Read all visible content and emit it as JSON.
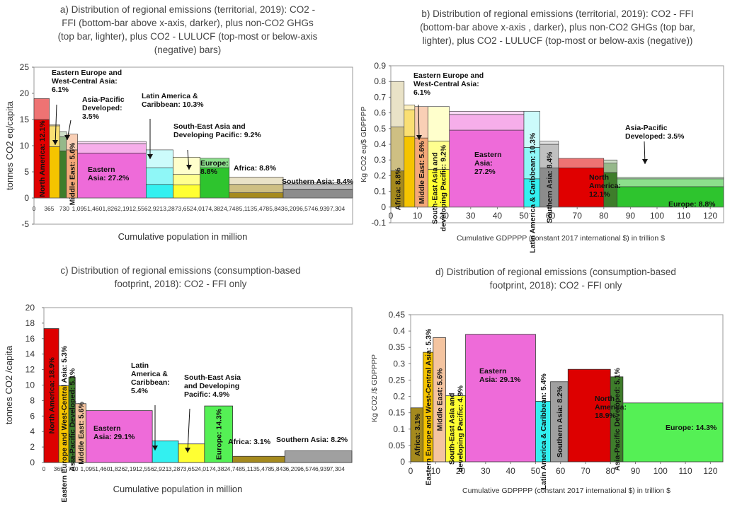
{
  "chart_data": [
    {
      "type": "bar",
      "panel": "a",
      "title": [
        "a) Distribution of regional emissions (territorial, 2019): CO2  -",
        "FFI (bottom-bar  above x-axis, darker), plus non-CO2  GHGs",
        "(top bar, lighter), plus  CO2   - LULUCF (top-most or below-axis",
        "(negative) bars)"
      ],
      "xlabel": "Cumulative population in million",
      "ylabel": "tonnes CO2 eq/capita",
      "ylim": [
        -5,
        25
      ],
      "yticks": [
        "-5",
        "0",
        "5",
        "10",
        "15",
        "20",
        "25"
      ],
      "xlim": [
        0,
        7670
      ],
      "xtick_labels": [
        "0",
        "365",
        "730",
        "1,095",
        "1,460",
        "1,826",
        "2,191",
        "2,556",
        "2,921",
        "3,287",
        "3,652",
        "4,017",
        "4,382",
        "4,748",
        "5,113",
        "5,478",
        "5,843",
        "6,209",
        "6,574",
        "6,939",
        "7,304"
      ],
      "series": [
        {
          "region": "North America",
          "label": "North America: 12.1%",
          "x0": 0,
          "x1": 370,
          "ffi": 15.0,
          "nonco2": 4.0,
          "lulucf": 0,
          "color": "#e00000"
        },
        {
          "region": "Eastern Europe and West-Central Asia",
          "label": "Eastern Europe and West-Central Asia: 6.1%",
          "x0": 370,
          "x1": 620,
          "ffi": 9.8,
          "nonco2": 4.0,
          "lulucf": 0.2,
          "color": "#f5c400"
        },
        {
          "region": "Asia-Pacific Developed",
          "label": "Asia-Pacific Developed: 3.5%",
          "x0": 620,
          "x1": 780,
          "ffi": 9.0,
          "nonco2": 2.7,
          "lulucf": 1.0,
          "color": "#3e7d2b"
        },
        {
          "region": "Middle East",
          "label": "Middle East: 5.6%",
          "x0": 780,
          "x1": 1050,
          "ffi": 9.2,
          "nonco2": 3.0,
          "lulucf": 0,
          "color": "#f4a878"
        },
        {
          "region": "Eastern Asia",
          "label": "Eastern Asia: 27.2%",
          "x0": 1050,
          "x1": 2700,
          "ffi": 8.6,
          "nonco2": 1.8,
          "lulucf": 0.4,
          "color": "#ee6bd9"
        },
        {
          "region": "Latin America & Caribbean",
          "label": "Latin America & Caribbean: 10.3%",
          "x0": 2700,
          "x1": 3350,
          "ffi": 2.6,
          "nonco2": 3.2,
          "lulucf": 3.4,
          "color": "#33f0f0"
        },
        {
          "region": "South-East Asia and Developing Pacific",
          "label": "South-East Asia and Developing Pacific: 9.2%",
          "x0": 3350,
          "x1": 4000,
          "ffi": 2.5,
          "nonco2": 2.0,
          "lulucf": 3.3,
          "color": "#ffff33"
        },
        {
          "region": "Europe",
          "label": "Europe: 8.8%",
          "x0": 4000,
          "x1": 4700,
          "ffi": 5.8,
          "nonco2": 1.8,
          "lulucf": 0,
          "color": "#2ec42e"
        },
        {
          "region": "Africa",
          "label": "Africa: 8.8%",
          "x0": 4700,
          "x1": 6000,
          "ffi": 1.0,
          "nonco2": 1.6,
          "lulucf": 1.4,
          "color": "#a58a1e"
        },
        {
          "region": "Southern Asia",
          "label": "Southern Asia: 8.4%",
          "x0": 6000,
          "x1": 7670,
          "ffi": 1.7,
          "nonco2": 0.9,
          "lulucf": 0.3,
          "color": "#8c8c8c"
        }
      ]
    },
    {
      "type": "bar",
      "panel": "b",
      "title": [
        "b) Distribution of regional emissions (territorial, 2019): CO2  - FFI",
        "(bottom-bar  above x-axis , darker), plus non-CO2  GHGs (top bar,",
        "lighter), plus  CO2   - LULUCF (top-most or below-axis (negative))"
      ],
      "xlabel": "Cumulative GDPPPP (constant 2017 international $) in trillion $",
      "ylabel": "Kg CO2 eq/$ GDPPPP",
      "ylim": [
        -0.1,
        0.9
      ],
      "yticks": [
        "-0.1",
        "0",
        "0.1",
        "0.2",
        "0.3",
        "0.4",
        "0.5",
        "0.6",
        "0.7",
        "0.8",
        "0.9"
      ],
      "xlim": [
        0,
        125
      ],
      "xtick_labels": [
        "0",
        "10",
        "20",
        "30",
        "40",
        "50",
        "60",
        "70",
        "80",
        "90",
        "100",
        "110",
        "120"
      ],
      "series": [
        {
          "region": "Africa",
          "label": "Africa: 8.8%",
          "x0": 0,
          "x1": 5,
          "ffi": 0.23,
          "nonco2": 0.28,
          "lulucf": 0.29,
          "color": "#a58a1e"
        },
        {
          "region": "Eastern Europe and West-Central Asia",
          "label": "Eastern Europe and West-Central Asia: 6.1%",
          "x0": 5,
          "x1": 9,
          "ffi": 0.45,
          "nonco2": 0.17,
          "lulucf": 0.03,
          "color": "#f5c400"
        },
        {
          "region": "Middle East",
          "label": "Middle East: 5.6%",
          "x0": 9,
          "x1": 14,
          "ffi": 0.44,
          "nonco2": 0.2,
          "lulucf": 0,
          "color": "#f4a878"
        },
        {
          "region": "South-East Asia and developing Pacific",
          "label": "South-East Asia and developing Pacific: 9.2%",
          "x0": 14,
          "x1": 22,
          "ffi": 0.24,
          "nonco2": 0.18,
          "lulucf": 0.22,
          "color": "#ffff33"
        },
        {
          "region": "Eastern Asia",
          "label": "Eastern Asia: 27.2%",
          "x0": 22,
          "x1": 50,
          "ffi": 0.49,
          "nonco2": 0.1,
          "lulucf": 0.02,
          "color": "#ee6bd9"
        },
        {
          "region": "Latin America & Caribbean",
          "label": "Latin America & Caribbean: 10.3%",
          "x0": 50,
          "x1": 56,
          "ffi": 0.18,
          "nonco2": 0.2,
          "lulucf": 0.23,
          "color": "#33f0f0"
        },
        {
          "region": "Southern Asia",
          "label": "Southern Asia: 8.4%",
          "x0": 56,
          "x1": 63,
          "ffi": 0.25,
          "nonco2": 0.15,
          "lulucf": 0.02,
          "color": "#8c8c8c"
        },
        {
          "region": "North America",
          "label": "North America: 12.1%",
          "x0": 63,
          "x1": 80,
          "ffi": 0.25,
          "nonco2": 0.06,
          "lulucf": 0,
          "color": "#e00000"
        },
        {
          "region": "Asia-Pacific Developed",
          "label": "Asia-Pacific Developed: 3.5%",
          "x0": 80,
          "x1": 85,
          "ffi": 0.22,
          "nonco2": 0.06,
          "lulucf": 0.02,
          "color": "#3e7d2b"
        },
        {
          "region": "Europe",
          "label": "Europe: 8.8%",
          "x0": 85,
          "x1": 125,
          "ffi": 0.13,
          "nonco2": 0.05,
          "lulucf": 0.01,
          "color": "#2ec42e"
        }
      ]
    },
    {
      "type": "bar",
      "panel": "c",
      "title": [
        "c) Distribution of regional emissions (consumption-based",
        "footprint,  2018): CO2 - FFI only"
      ],
      "xlabel": "Cumulative population in million",
      "ylabel": "tonnes CO2 /capita",
      "ylim": [
        0,
        20
      ],
      "yticks": [
        "0",
        "2",
        "4",
        "6",
        "8",
        "10",
        "12",
        "14",
        "16",
        "18",
        "20"
      ],
      "xlim": [
        0,
        7670
      ],
      "xtick_labels": [
        "0",
        "365",
        "730",
        "1,095",
        "1,460",
        "1,826",
        "2,191",
        "2,556",
        "2,921",
        "3,287",
        "3,652",
        "4,017",
        "4,382",
        "4,748",
        "5,113",
        "5,478",
        "5,843",
        "6,209",
        "6,574",
        "6,939",
        "7,304"
      ],
      "series": [
        {
          "region": "North America",
          "label": "North America: 18.9%",
          "x0": 0,
          "x1": 370,
          "value": 17.3,
          "color": "#dd0000"
        },
        {
          "region": "Eastern Europe and West-Central Asia",
          "label": "Eastern Europe and West-Central Asia: 5.3%",
          "x0": 370,
          "x1": 620,
          "value": 9.9,
          "color": "#f5c400"
        },
        {
          "region": "Asia-Pacific Developed",
          "label": "Asia-Pacific Developed: 5.1%",
          "x0": 620,
          "x1": 780,
          "value": 11.0,
          "color": "#3e7d2b"
        },
        {
          "region": "Middle East",
          "label": "Middle East: 5.6%",
          "x0": 780,
          "x1": 1050,
          "value": 7.6,
          "color": "#f4c4a0"
        },
        {
          "region": "Eastern Asia",
          "label": "Eastern Asia: 29.1%",
          "x0": 1050,
          "x1": 2700,
          "value": 6.7,
          "color": "#ee6bd9"
        },
        {
          "region": "Latin America & Caribbean",
          "label": "Latin America & Caribbean: 5.4%",
          "x0": 2700,
          "x1": 3350,
          "value": 2.8,
          "color": "#33f0f0"
        },
        {
          "region": "South-East Asia and Developing Pacific",
          "label": "South-East Asia and Developing Pacific: 4.9%",
          "x0": 3350,
          "x1": 4000,
          "value": 2.4,
          "color": "#ffff33"
        },
        {
          "region": "Europe",
          "label": "Europe: 14.3%",
          "x0": 4000,
          "x1": 4700,
          "value": 7.3,
          "color": "#55f055"
        },
        {
          "region": "Africa",
          "label": "Africa: 3.1%",
          "x0": 4700,
          "x1": 6000,
          "value": 0.8,
          "color": "#a58a1e"
        },
        {
          "region": "Southern Asia",
          "label": "Southern Asia: 8.2%",
          "x0": 6000,
          "x1": 7670,
          "value": 1.5,
          "color": "#a0a0a0"
        }
      ]
    },
    {
      "type": "bar",
      "panel": "d",
      "title": [
        "d) Distribution of regional emissions (consumption-based",
        "footprint,  2018): CO2 - FFI only"
      ],
      "xlabel": "Cumulative GDPPPP (constant 2017 international $) in trillion $",
      "ylabel": "Kg CO2 /$ GDPPPP",
      "ylim": [
        0,
        0.45
      ],
      "yticks": [
        "0",
        "0.05",
        "0.1",
        "0.15",
        "0.2",
        "0.25",
        "0.3",
        "0.35",
        "0.4",
        "0.45"
      ],
      "xlim": [
        0,
        125
      ],
      "xtick_labels": [
        "0",
        "10",
        "20",
        "30",
        "40",
        "50",
        "60",
        "70",
        "80",
        "90",
        "100",
        "110",
        "120"
      ],
      "series": [
        {
          "region": "Africa",
          "label": "Africa: 3.1%",
          "x0": 0,
          "x1": 5,
          "value": 0.165,
          "color": "#a58a1e"
        },
        {
          "region": "Eastern Europe and West-Central Asia",
          "label": "Eastern Europe and West-Central Asia: 5.3%",
          "x0": 5,
          "x1": 9,
          "value": 0.335,
          "color": "#f5c400"
        },
        {
          "region": "Middle East",
          "label": "Middle East: 5.6%",
          "x0": 9,
          "x1": 14,
          "value": 0.38,
          "color": "#f4c4a0"
        },
        {
          "region": "South-East Asia and developing Pacific",
          "label": "South-East Asia and developing Pacific: 4.9%",
          "x0": 14,
          "x1": 22,
          "value": 0.202,
          "color": "#ffff33"
        },
        {
          "region": "Eastern Asia",
          "label": "Eastern Asia: 29.1%",
          "x0": 22,
          "x1": 50,
          "value": 0.39,
          "color": "#ee6bd9"
        },
        {
          "region": "Latin America & Caribbean",
          "label": "Latin America & Caribbean: 5.4%",
          "x0": 50,
          "x1": 56,
          "value": 0.185,
          "color": "#33f0f0"
        },
        {
          "region": "Southern Asia",
          "label": "Southern Asia: 8.2%",
          "x0": 56,
          "x1": 63,
          "value": 0.245,
          "color": "#a0a0a0"
        },
        {
          "region": "North America",
          "label": "North America: 18.9%",
          "x0": 63,
          "x1": 80,
          "value": 0.283,
          "color": "#dd0000"
        },
        {
          "region": "Asia-Pacific Developed",
          "label": "Asia-Pacific Developed: 5.1%",
          "x0": 80,
          "x1": 85,
          "value": 0.26,
          "color": "#3e7d2b"
        },
        {
          "region": "Europe",
          "label": "Europe: 14.3%",
          "x0": 85,
          "x1": 125,
          "value": 0.18,
          "color": "#55f055"
        }
      ]
    }
  ]
}
